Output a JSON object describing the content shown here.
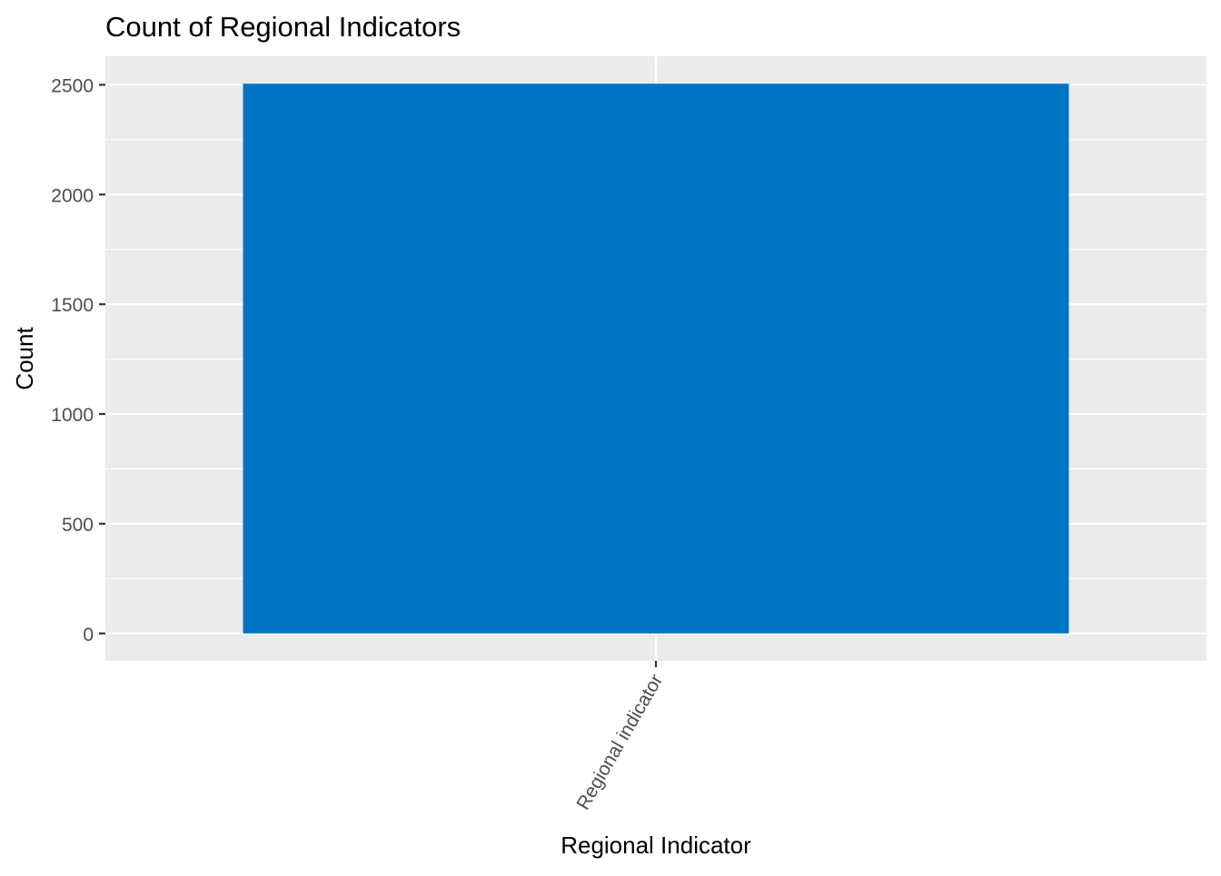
{
  "chart_data": {
    "type": "bar",
    "title": "Count of Regional Indicators",
    "xlabel": "Regional Indicator",
    "ylabel": "Count",
    "categories": [
      "Regional indicator"
    ],
    "values": [
      2505
    ],
    "ylim": [
      -125,
      2630
    ],
    "yticks": [
      0,
      500,
      1000,
      1500,
      2000,
      2500
    ],
    "grid": true,
    "legend": "none",
    "colors": {
      "bar": "#0073C2",
      "panel": "#EBEBEB",
      "grid": "#FFFFFF",
      "tick_text": "#4D4D4D",
      "title_text": "#000000"
    }
  }
}
